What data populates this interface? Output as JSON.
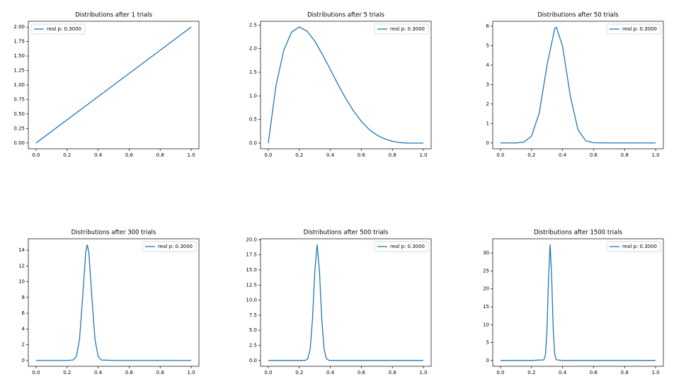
{
  "chart_data": [
    {
      "type": "line",
      "title": "Distributions after 1 trials",
      "x": [
        0,
        0.5,
        1
      ],
      "series": [
        {
          "name": "real p: 0.3000",
          "color": "#1f77b4",
          "values": [
            0,
            1,
            2
          ]
        }
      ],
      "xlim": [
        -0.05,
        1.05
      ],
      "ylim": [
        -0.1,
        2.1
      ],
      "xticks": [
        {
          "value": 0,
          "label": "0.0"
        },
        0.2,
        0.4,
        0.6,
        0.8,
        {
          "value": 1,
          "label": "1.0"
        }
      ],
      "yticks": [
        {
          "value": 0,
          "label": "0.00"
        },
        0.25,
        {
          "value": 0.5,
          "label": "0.50"
        },
        0.75,
        {
          "value": 1,
          "label": "1.00"
        },
        1.25,
        {
          "value": 1.5,
          "label": "1.50"
        },
        1.75,
        {
          "value": 2,
          "label": "2.00"
        }
      ],
      "legend": "upper left"
    },
    {
      "type": "line",
      "title": "Distributions after 5 trials",
      "x": [
        0,
        0.05,
        0.1,
        0.15,
        0.2,
        0.25,
        0.3,
        0.35,
        0.4,
        0.45,
        0.5,
        0.55,
        0.6,
        0.65,
        0.7,
        0.75,
        0.8,
        0.85,
        0.9,
        0.95,
        1
      ],
      "series": [
        {
          "name": "real p: 0.3000",
          "color": "#1f77b4",
          "values": [
            0,
            1.22,
            1.97,
            2.35,
            2.46,
            2.37,
            2.16,
            1.87,
            1.56,
            1.24,
            0.94,
            0.68,
            0.46,
            0.29,
            0.17,
            0.09,
            0.04,
            0.01,
            0,
            0,
            0
          ]
        }
      ],
      "xlim": [
        -0.05,
        1.05
      ],
      "ylim": [
        -0.12,
        2.58
      ],
      "xticks": [
        {
          "value": 0,
          "label": "0.0"
        },
        0.2,
        0.4,
        0.6,
        0.8,
        {
          "value": 1,
          "label": "1.0"
        }
      ],
      "yticks": [
        {
          "value": 0,
          "label": "0.0"
        },
        0.5,
        {
          "value": 1,
          "label": "1.0"
        },
        1.5,
        {
          "value": 2,
          "label": "2.0"
        },
        2.5
      ],
      "legend": "upper right"
    },
    {
      "type": "line",
      "title": "Distributions after 50 trials",
      "x": [
        0,
        0.1,
        0.15,
        0.2,
        0.25,
        0.3,
        0.35,
        0.36,
        0.4,
        0.45,
        0.5,
        0.55,
        0.6,
        0.7,
        0.8,
        0.9,
        1
      ],
      "series": [
        {
          "name": "real p: 0.3000",
          "color": "#1f77b4",
          "values": [
            0,
            0,
            0.04,
            0.35,
            1.54,
            3.99,
            5.88,
            5.95,
            4.98,
            2.41,
            0.67,
            0.11,
            0.01,
            0,
            0,
            0,
            0
          ]
        }
      ],
      "xlim": [
        -0.05,
        1.05
      ],
      "ylim": [
        -0.3,
        6.25
      ],
      "xticks": [
        {
          "value": 0,
          "label": "0.0"
        },
        0.2,
        0.4,
        0.6,
        0.8,
        {
          "value": 1,
          "label": "1.0"
        }
      ],
      "yticks": [
        0,
        1,
        2,
        3,
        4,
        5,
        6
      ],
      "legend": "upper right"
    },
    {
      "type": "line",
      "title": "Distributions after 300 trials",
      "x": [
        0,
        0.2,
        0.24,
        0.26,
        0.28,
        0.3,
        0.32,
        0.33,
        0.34,
        0.36,
        0.38,
        0.4,
        0.42,
        0.5,
        1
      ],
      "series": [
        {
          "name": "real p: 0.3000",
          "color": "#1f77b4",
          "values": [
            0,
            0,
            0.06,
            0.53,
            2.66,
            7.96,
            13.73,
            14.7,
            13.73,
            7.96,
            2.66,
            0.53,
            0.06,
            0,
            0
          ]
        }
      ],
      "xlim": [
        -0.05,
        1.05
      ],
      "ylim": [
        -0.74,
        15.45
      ],
      "xticks": [
        {
          "value": 0,
          "label": "0.0"
        },
        0.2,
        0.4,
        0.6,
        0.8,
        {
          "value": 1,
          "label": "1.0"
        }
      ],
      "yticks": [
        0,
        2,
        4,
        6,
        8,
        10,
        12,
        14
      ],
      "legend": "upper right"
    },
    {
      "type": "line",
      "title": "Distributions after 500 trials",
      "x": [
        0,
        0.2,
        0.24,
        0.255,
        0.27,
        0.285,
        0.3,
        0.315,
        0.33,
        0.345,
        0.36,
        0.375,
        0.39,
        0.45,
        1
      ],
      "series": [
        {
          "name": "real p: 0.3000",
          "color": "#1f77b4",
          "values": [
            0,
            0,
            0.03,
            0.3,
            1.85,
            6.8,
            14.8,
            19.2,
            14.8,
            6.8,
            1.85,
            0.3,
            0.03,
            0,
            0
          ]
        }
      ],
      "xlim": [
        -0.05,
        1.05
      ],
      "ylim": [
        -0.96,
        20.16
      ],
      "xticks": [
        {
          "value": 0,
          "label": "0.0"
        },
        0.2,
        0.4,
        0.6,
        0.8,
        {
          "value": 1,
          "label": "1.0"
        }
      ],
      "yticks": [
        {
          "value": 0,
          "label": "0.0"
        },
        2.5,
        {
          "value": 5,
          "label": "5.0"
        },
        7.5,
        {
          "value": 10,
          "label": "10.0"
        },
        12.5,
        {
          "value": 15,
          "label": "15.0"
        },
        17.5,
        {
          "value": 20,
          "label": "20.0"
        }
      ],
      "legend": "upper right"
    },
    {
      "type": "line",
      "title": "Distributions after 1500 trials",
      "x": [
        0,
        0.2,
        0.28,
        0.29,
        0.3,
        0.31,
        0.32,
        0.33,
        0.34,
        0.35,
        0.36,
        0.4,
        1
      ],
      "series": [
        {
          "name": "real p: 0.3000",
          "color": "#1f77b4",
          "values": [
            0,
            0,
            0.17,
            1.66,
            8.65,
            23.3,
            32.4,
            23.3,
            8.65,
            1.66,
            0.17,
            0,
            0
          ]
        }
      ],
      "xlim": [
        -0.05,
        1.05
      ],
      "ylim": [
        -1.62,
        34
      ],
      "xticks": [
        {
          "value": 0,
          "label": "0.0"
        },
        0.2,
        0.4,
        0.6,
        0.8,
        {
          "value": 1,
          "label": "1.0"
        }
      ],
      "yticks": [
        0,
        5,
        10,
        15,
        20,
        25,
        30
      ],
      "legend": "upper right"
    }
  ]
}
